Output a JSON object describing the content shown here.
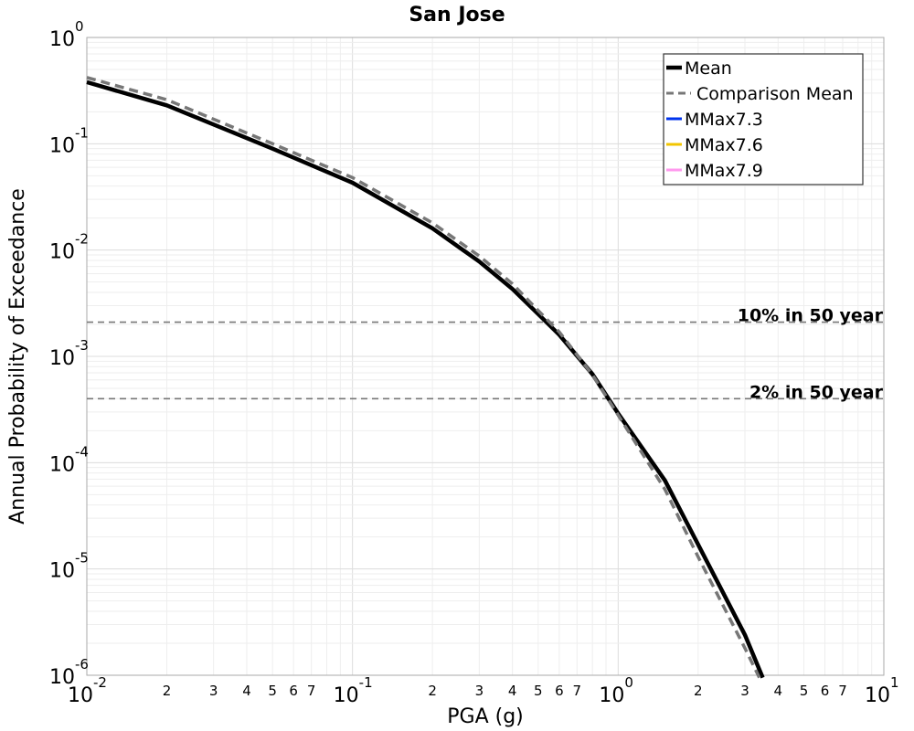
{
  "chart_data": {
    "type": "line",
    "title": "San Jose",
    "xlabel": "PGA (g)",
    "ylabel": "Annual Probability of Exceedance",
    "x_scale": "log",
    "y_scale": "log",
    "xlim": [
      0.01,
      10
    ],
    "ylim": [
      1e-06,
      1
    ],
    "grid": true,
    "legend_position": "top-right",
    "x_major_ticks": [
      {
        "base": "10",
        "exp": "-2",
        "value": 0.01
      },
      {
        "base": "10",
        "exp": "-1",
        "value": 0.1
      },
      {
        "base": "10",
        "exp": "0",
        "value": 1
      },
      {
        "base": "10",
        "exp": "1",
        "value": 10
      }
    ],
    "x_minor_tick_labels": [
      "2",
      "3",
      "4",
      "5",
      "6",
      "7"
    ],
    "y_major_ticks": [
      {
        "base": "10",
        "exp": "0",
        "value": 1
      },
      {
        "base": "10",
        "exp": "-1",
        "value": 0.1
      },
      {
        "base": "10",
        "exp": "-2",
        "value": 0.01
      },
      {
        "base": "10",
        "exp": "-3",
        "value": 0.001
      },
      {
        "base": "10",
        "exp": "-4",
        "value": 0.0001
      },
      {
        "base": "10",
        "exp": "-5",
        "value": 1e-05
      },
      {
        "base": "10",
        "exp": "-6",
        "value": 1e-06
      }
    ],
    "series": [
      {
        "name": "Mean",
        "color": "#000000",
        "dash": "solid",
        "x": [
          0.01,
          0.02,
          0.05,
          0.1,
          0.2,
          0.3,
          0.4,
          0.5,
          0.6,
          0.8,
          1.0,
          1.5,
          2.0,
          3.0,
          3.5
        ],
        "y": [
          0.38,
          0.23,
          0.09,
          0.043,
          0.016,
          0.0078,
          0.0043,
          0.0025,
          0.0016,
          0.00068,
          0.00029,
          6.8e-05,
          1.7e-05,
          2.4e-06,
          9.5e-07
        ]
      },
      {
        "name": "Comparison Mean",
        "color": "#777777",
        "dash": "dashed",
        "x": [
          0.01,
          0.02,
          0.05,
          0.1,
          0.2,
          0.3,
          0.4,
          0.5,
          0.6,
          0.8,
          1.0,
          1.5,
          2.0,
          3.0,
          3.4
        ],
        "y": [
          0.42,
          0.26,
          0.1,
          0.048,
          0.018,
          0.0088,
          0.0048,
          0.0027,
          0.0017,
          0.00067,
          0.00028,
          5.6e-05,
          1.3e-05,
          1.8e-06,
          9.5e-07
        ]
      },
      {
        "name": "MMax7.3",
        "color": "#0033ee",
        "dash": "solid",
        "x": [],
        "y": []
      },
      {
        "name": "MMax7.6",
        "color": "#f2c500",
        "dash": "solid",
        "x": [],
        "y": []
      },
      {
        "name": "MMax7.9",
        "color": "#ff99ee",
        "dash": "solid",
        "x": [],
        "y": []
      }
    ],
    "reference_lines": [
      {
        "label": "10% in 50 year",
        "y": 0.0021
      },
      {
        "label": "2% in 50 year",
        "y": 0.0004
      }
    ]
  }
}
